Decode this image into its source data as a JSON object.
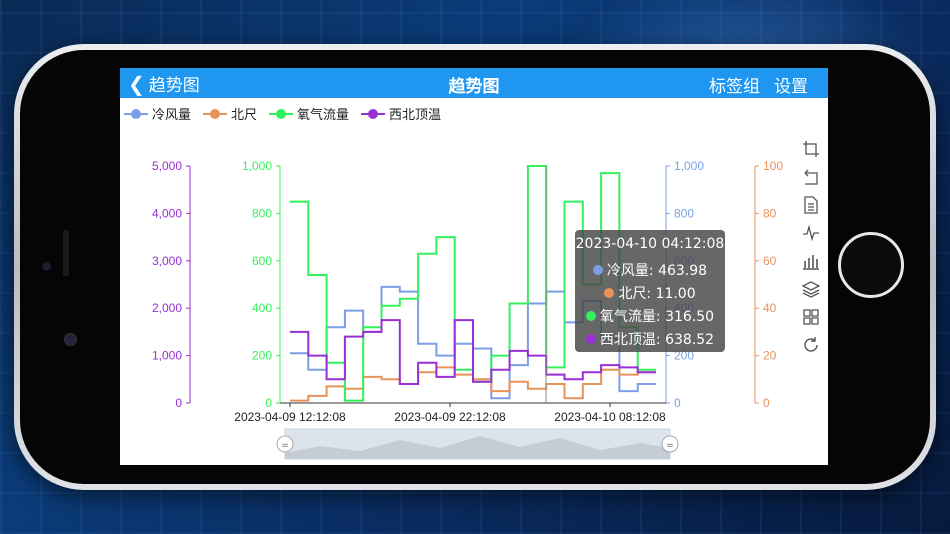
{
  "nav": {
    "back_label": "趋势图",
    "title": "趋势图",
    "tag_group": "标签组",
    "settings": "设置"
  },
  "legend": [
    {
      "name": "冷风量",
      "color": "#7b9ee6"
    },
    {
      "name": "北尺",
      "color": "#e8935a"
    },
    {
      "name": "氧气流量",
      "color": "#35f05d"
    },
    {
      "name": "西北顶温",
      "color": "#9a2fd3"
    }
  ],
  "tooltip": {
    "time": "2023-04-10 04:12:08",
    "rows": [
      {
        "label": "冷风量: 463.98",
        "color": "#7b9ee6"
      },
      {
        "label": "北尺: 11.00",
        "color": "#e8935a"
      },
      {
        "label": "氧气流量: 316.50",
        "color": "#35f05d"
      },
      {
        "label": "西北顶温: 638.52",
        "color": "#9a2fd3"
      }
    ]
  },
  "toolbox": [
    "crop-icon",
    "undo-icon",
    "data-view-icon",
    "line-chart-icon",
    "bar-chart-icon",
    "stack-icon",
    "tiled-icon",
    "refresh-icon"
  ],
  "chart_data": {
    "type": "line",
    "step": true,
    "x_labels": [
      "2023-04-09 12:12:08",
      "2023-04-09 22:12:08",
      "2023-04-10 08:12:08"
    ],
    "axes": {
      "西北顶温": {
        "ticks": [
          "5,000",
          "4,000",
          "3,000",
          "2,000",
          "1,000",
          "0"
        ],
        "range": [
          0,
          5000
        ],
        "color": "#9a2fd3"
      },
      "氧气流量": {
        "ticks": [
          "1,000",
          "800",
          "600",
          "400",
          "200",
          "0"
        ],
        "range": [
          0,
          1000
        ],
        "color": "#35f05d"
      },
      "冷风量": {
        "ticks": [
          "1,000",
          "800",
          "600",
          "400",
          "200",
          "0"
        ],
        "range": [
          0,
          1000
        ],
        "color": "#7b9ee6"
      },
      "北尺": {
        "ticks": [
          "100",
          "80",
          "60",
          "40",
          "20",
          "0"
        ],
        "range": [
          0,
          100
        ],
        "color": "#e8935a"
      }
    },
    "series": [
      {
        "name": "冷风量",
        "axis": "冷风量",
        "color": "#7b9ee6",
        "values": [
          210,
          140,
          320,
          390,
          300,
          490,
          470,
          250,
          200,
          250,
          230,
          20,
          160,
          420,
          470,
          340,
          430,
          270,
          50,
          80
        ]
      },
      {
        "name": "北尺",
        "axis": "北尺",
        "color": "#e8935a",
        "values": [
          1,
          3,
          7,
          6,
          11,
          10,
          8,
          13,
          15,
          12,
          10,
          5,
          9,
          6,
          8,
          2,
          8,
          14,
          12,
          13
        ]
      },
      {
        "name": "氧气流量",
        "axis": "氧气流量",
        "color": "#35f05d",
        "values": [
          850,
          540,
          170,
          10,
          320,
          410,
          440,
          630,
          700,
          140,
          90,
          200,
          420,
          1000,
          150,
          850,
          500,
          970,
          320,
          140
        ]
      },
      {
        "name": "西北顶温",
        "axis": "西北顶温",
        "color": "#9a2fd3",
        "values": [
          1500,
          1000,
          500,
          1400,
          1500,
          1750,
          400,
          850,
          550,
          1750,
          450,
          700,
          1100,
          1000,
          600,
          500,
          650,
          800,
          750,
          650
        ]
      }
    ],
    "grid": false,
    "legend_position": "top-left",
    "datazoom": true
  }
}
